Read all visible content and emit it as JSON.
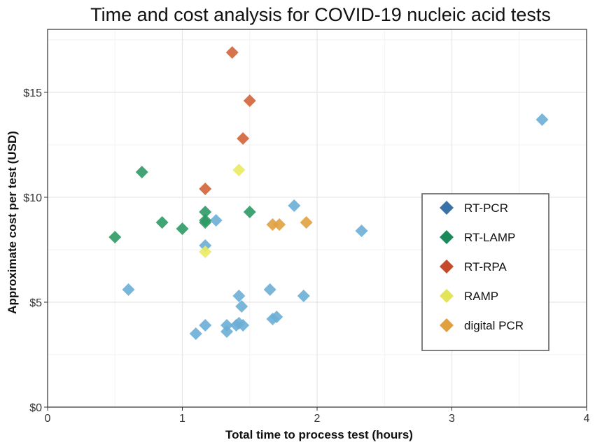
{
  "chart_data": {
    "type": "scatter",
    "title": "Time and cost analysis for COVID-19 nucleic acid tests",
    "xlabel": "Total time to process test (hours)",
    "ylabel": "Approximate cost per test (USD)",
    "xlim": [
      0,
      4
    ],
    "ylim": [
      0,
      18
    ],
    "x_ticks": [
      0,
      1,
      2,
      3,
      4
    ],
    "x_tick_labels": [
      "0",
      "1",
      "2",
      "3",
      "4"
    ],
    "y_ticks": [
      0,
      5,
      10,
      15
    ],
    "y_tick_labels": [
      "$0",
      "$5",
      "$10",
      "$15"
    ],
    "grid": true,
    "legend_position": "right",
    "series": [
      {
        "name": "RT-PCR",
        "legend_color": "#3a72a8",
        "color": "#6aaed6",
        "points": [
          {
            "x": 3.67,
            "y": 13.7
          },
          {
            "x": 1.83,
            "y": 9.6
          },
          {
            "x": 2.33,
            "y": 8.4
          },
          {
            "x": 1.25,
            "y": 8.9
          },
          {
            "x": 1.17,
            "y": 7.7
          },
          {
            "x": 0.6,
            "y": 5.6
          },
          {
            "x": 1.65,
            "y": 5.6
          },
          {
            "x": 1.42,
            "y": 5.3
          },
          {
            "x": 1.9,
            "y": 5.3
          },
          {
            "x": 1.44,
            "y": 4.8
          },
          {
            "x": 1.67,
            "y": 4.2
          },
          {
            "x": 1.7,
            "y": 4.3
          },
          {
            "x": 1.17,
            "y": 3.9
          },
          {
            "x": 1.33,
            "y": 3.9
          },
          {
            "x": 1.4,
            "y": 3.9
          },
          {
            "x": 1.42,
            "y": 4.0
          },
          {
            "x": 1.45,
            "y": 3.9
          },
          {
            "x": 1.1,
            "y": 3.5
          },
          {
            "x": 1.33,
            "y": 3.6
          }
        ]
      },
      {
        "name": "RT-LAMP",
        "legend_color": "#1a8a5a",
        "color": "#2e9a66",
        "points": [
          {
            "x": 0.7,
            "y": 11.2
          },
          {
            "x": 1.17,
            "y": 9.3
          },
          {
            "x": 1.5,
            "y": 9.3
          },
          {
            "x": 1.17,
            "y": 8.9
          },
          {
            "x": 1.17,
            "y": 8.8
          },
          {
            "x": 0.85,
            "y": 8.8
          },
          {
            "x": 1.0,
            "y": 8.5
          },
          {
            "x": 0.5,
            "y": 8.1
          }
        ]
      },
      {
        "name": "RT-RPA",
        "legend_color": "#c44a2a",
        "color": "#d2643a",
        "points": [
          {
            "x": 1.37,
            "y": 16.9
          },
          {
            "x": 1.5,
            "y": 14.6
          },
          {
            "x": 1.45,
            "y": 12.8
          },
          {
            "x": 1.17,
            "y": 10.4
          }
        ]
      },
      {
        "name": "RAMP",
        "legend_color": "#e4e45a",
        "color": "#eaea62",
        "points": [
          {
            "x": 1.42,
            "y": 11.3
          },
          {
            "x": 1.17,
            "y": 7.4
          }
        ]
      },
      {
        "name": "digital PCR",
        "legend_color": "#e0a040",
        "color": "#e0a040",
        "points": [
          {
            "x": 1.67,
            "y": 8.7
          },
          {
            "x": 1.72,
            "y": 8.7
          },
          {
            "x": 1.92,
            "y": 8.8
          }
        ]
      }
    ]
  }
}
